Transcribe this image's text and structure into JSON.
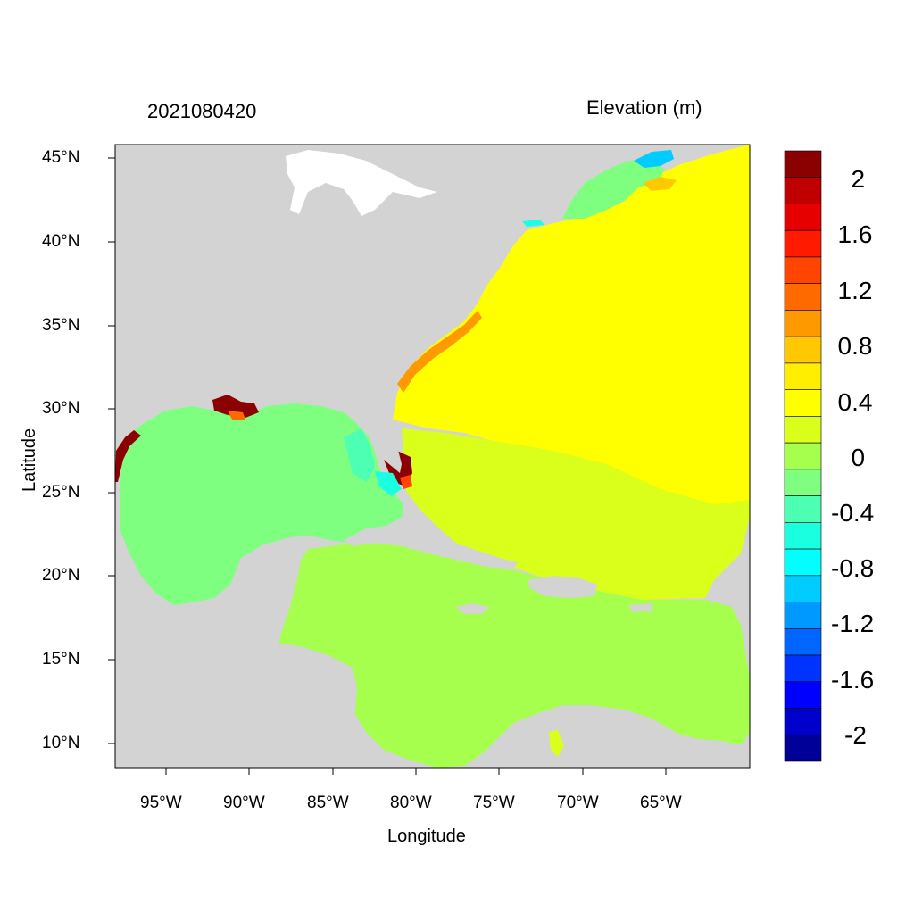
{
  "title_left": "2021080420",
  "title_right": "Elevation (m)",
  "xlabel": "Longitude",
  "ylabel": "Latitude",
  "x_ticks": [
    "95°W",
    "90°W",
    "85°W",
    "80°W",
    "75°W",
    "70°W",
    "65°W"
  ],
  "y_ticks": [
    "45°N",
    "40°N",
    "35°N",
    "30°N",
    "25°N",
    "20°N",
    "15°N",
    "10°N"
  ],
  "colorbar": {
    "labels": [
      "2",
      "1.6",
      "1.2",
      "0.8",
      "0.4",
      "0",
      "-0.4",
      "-0.8",
      "-1.2",
      "-1.6",
      "-2"
    ],
    "colors_top_to_bottom": [
      "#8b0000",
      "#c00000",
      "#e60000",
      "#ff1a00",
      "#ff4500",
      "#ff6a00",
      "#ff9900",
      "#ffc800",
      "#ffee00",
      "#ffff00",
      "#d9ff1a",
      "#a6ff4d",
      "#7fff80",
      "#4dffb3",
      "#1affe0",
      "#00ffff",
      "#00ccff",
      "#0099ff",
      "#0066ff",
      "#0033ff",
      "#0000ff",
      "#0000cc",
      "#000099"
    ]
  },
  "map": {
    "land_color": "#d3d3d3",
    "lon_range": [
      -98,
      -60
    ],
    "lat_range": [
      8.6,
      46
    ]
  }
}
